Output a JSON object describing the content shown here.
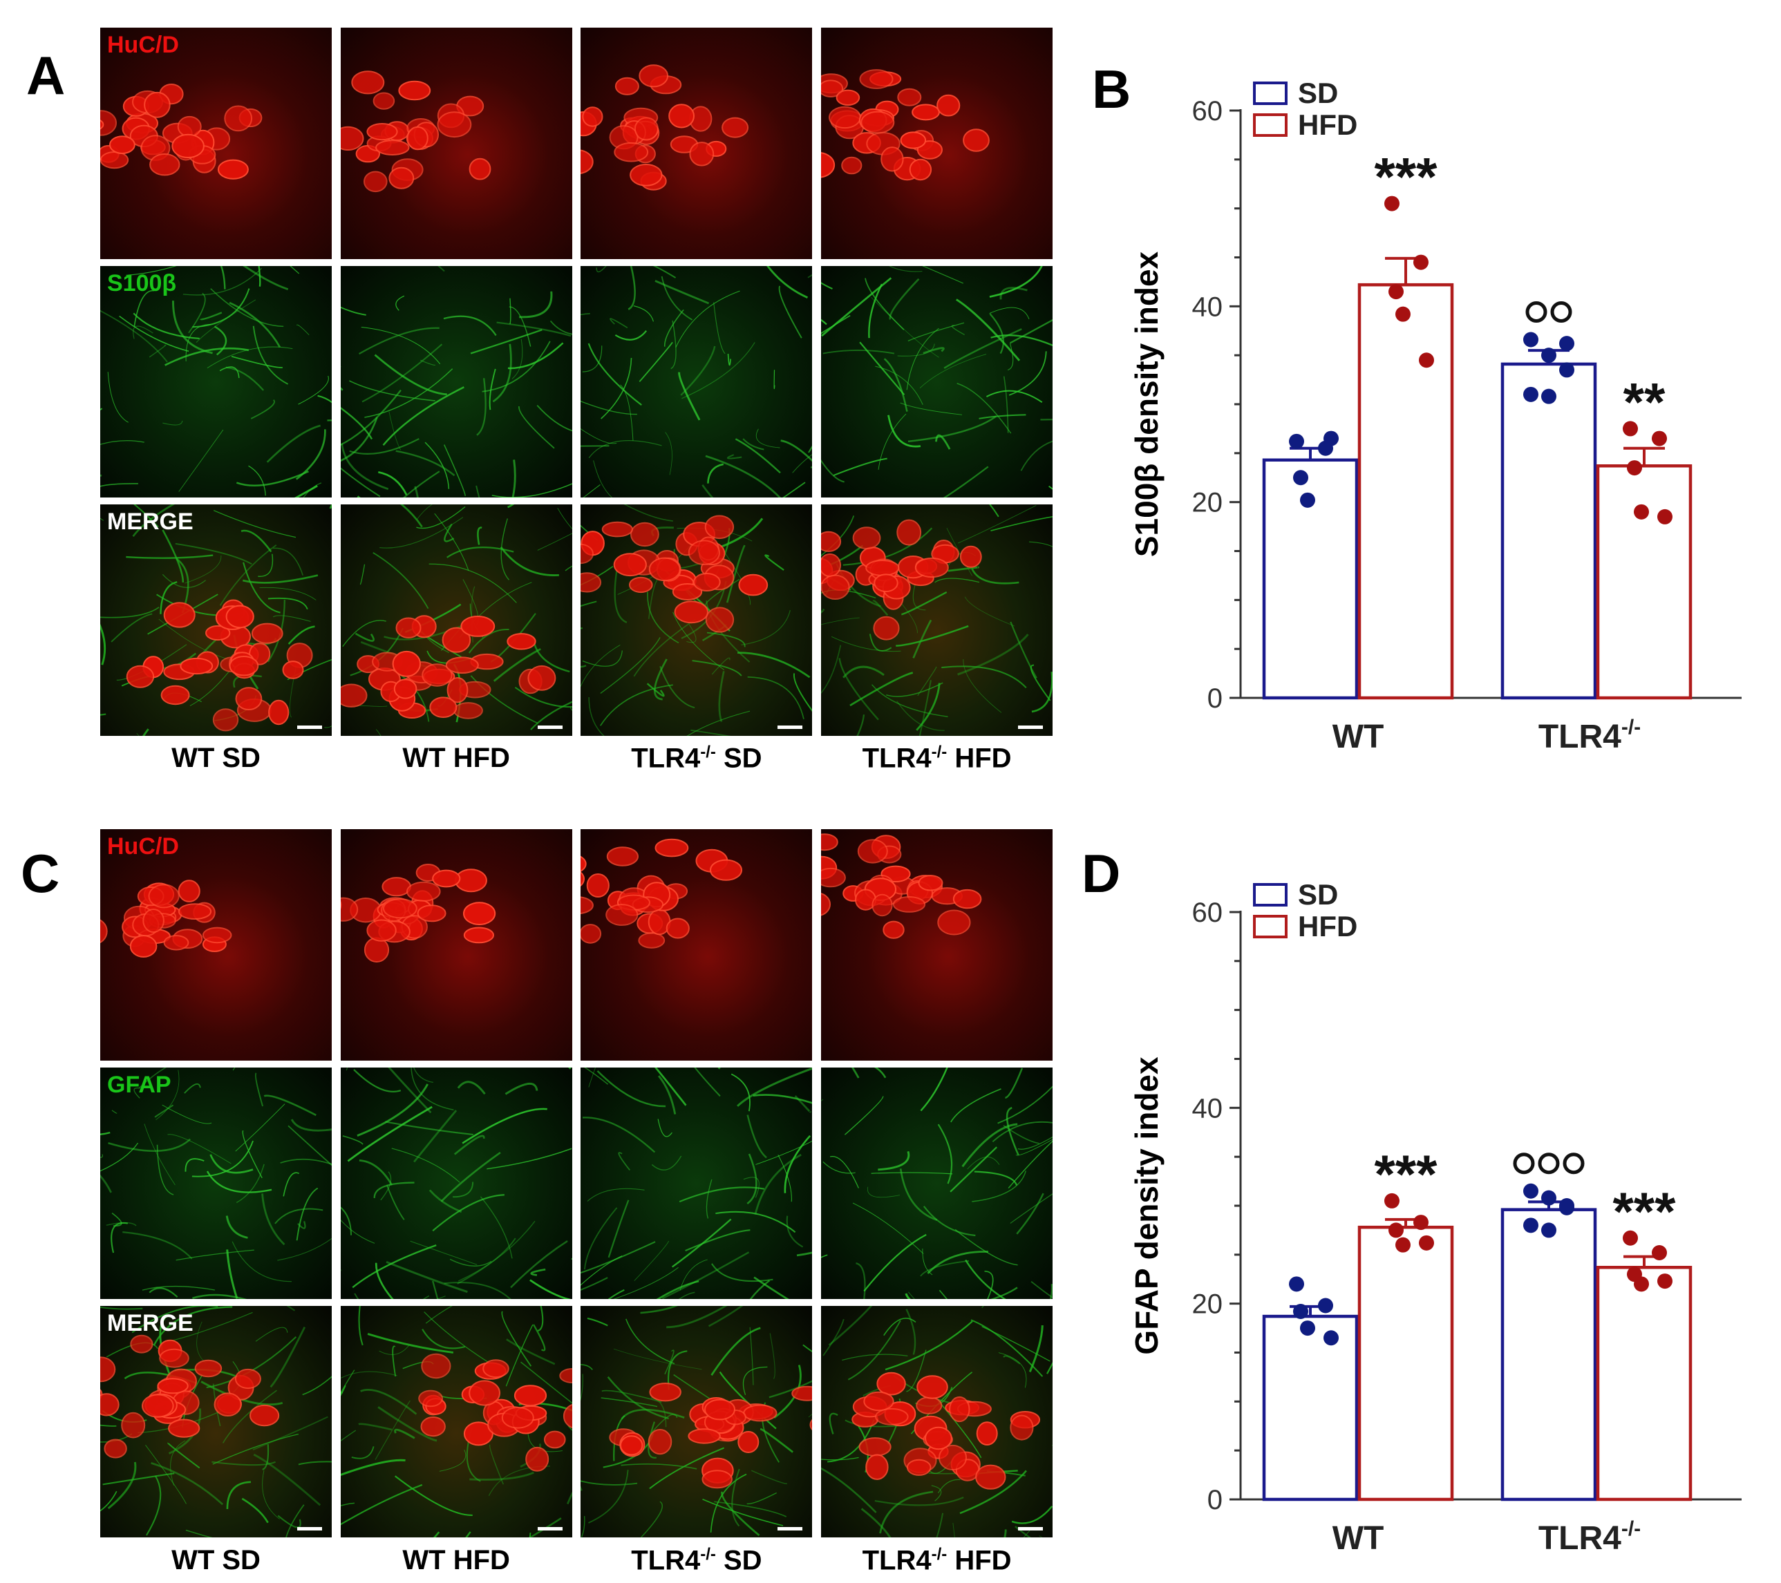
{
  "panels": {
    "A": {
      "letter": "A",
      "row_labels": [
        "HuC/D",
        "S100β",
        "MERGE"
      ]
    },
    "B": {
      "letter": "B"
    },
    "C": {
      "letter": "C",
      "row_labels": [
        "HuC/D",
        "GFAP",
        "MERGE"
      ]
    },
    "D": {
      "letter": "D"
    }
  },
  "columns": [
    {
      "main": "WT SD",
      "pre": "",
      "sup": "",
      "post": ""
    },
    {
      "main": "WT HFD",
      "pre": "",
      "sup": "",
      "post": ""
    },
    {
      "main": "",
      "pre": "TLR4",
      "sup": "-/-",
      "post": " SD"
    },
    {
      "main": "",
      "pre": "TLR4",
      "sup": "-/-",
      "post": " HFD"
    }
  ],
  "colors": {
    "sd": "#1a1a8c",
    "hfd": "#b01c1c",
    "sd_dot": "#0f1c80",
    "hfd_dot": "#a61010"
  },
  "chart_data": [
    {
      "id": "B",
      "type": "bar",
      "ylabel": "S100β density index",
      "ylim": [
        0,
        60
      ],
      "yticks": [
        0,
        20,
        40,
        60
      ],
      "categories": [
        {
          "main": "WT",
          "sup": ""
        },
        {
          "main": "TLR4",
          "sup": "-/-"
        }
      ],
      "legend": [
        "SD",
        "HFD"
      ],
      "legend_position": "top-left",
      "series": [
        {
          "name": "SD",
          "values": [
            24.3,
            34.1
          ],
          "sem": [
            1.2,
            1.4
          ],
          "points": [
            [
              26.2,
              25.5,
              22.5,
              20.2,
              26.5
            ],
            [
              36.6,
              35.0,
              33.5,
              31.0,
              30.8,
              36.2
            ]
          ],
          "annotations": [
            "",
            "○○"
          ]
        },
        {
          "name": "HFD",
          "values": [
            42.2,
            23.7
          ],
          "sem": [
            2.7,
            1.8
          ],
          "points": [
            [
              50.5,
              44.5,
              41.5,
              39.2,
              34.5
            ],
            [
              27.5,
              26.5,
              23.5,
              19.0,
              18.5
            ]
          ],
          "annotations": [
            "***",
            "**"
          ]
        }
      ]
    },
    {
      "id": "D",
      "type": "bar",
      "ylabel": "GFAP density index",
      "ylim": [
        0,
        60
      ],
      "yticks": [
        0,
        20,
        40,
        60
      ],
      "categories": [
        {
          "main": "WT",
          "sup": ""
        },
        {
          "main": "TLR4",
          "sup": "-/-"
        }
      ],
      "legend": [
        "SD",
        "HFD"
      ],
      "legend_position": "top-left",
      "series": [
        {
          "name": "SD",
          "values": [
            18.7,
            29.6
          ],
          "sem": [
            1.0,
            0.8
          ],
          "points": [
            [
              22.0,
              19.8,
              19.2,
              17.5,
              16.5
            ],
            [
              31.5,
              30.8,
              29.8,
              28.0,
              27.5,
              30.0
            ]
          ],
          "annotations": [
            "",
            "○○○"
          ]
        },
        {
          "name": "HFD",
          "values": [
            27.8,
            23.7
          ],
          "sem": [
            0.8,
            1.1
          ],
          "points": [
            [
              30.5,
              28.3,
              27.5,
              26.0,
              26.2
            ],
            [
              26.7,
              25.2,
              23.0,
              22.0,
              22.3
            ]
          ],
          "annotations": [
            "***",
            "***"
          ]
        }
      ]
    }
  ]
}
